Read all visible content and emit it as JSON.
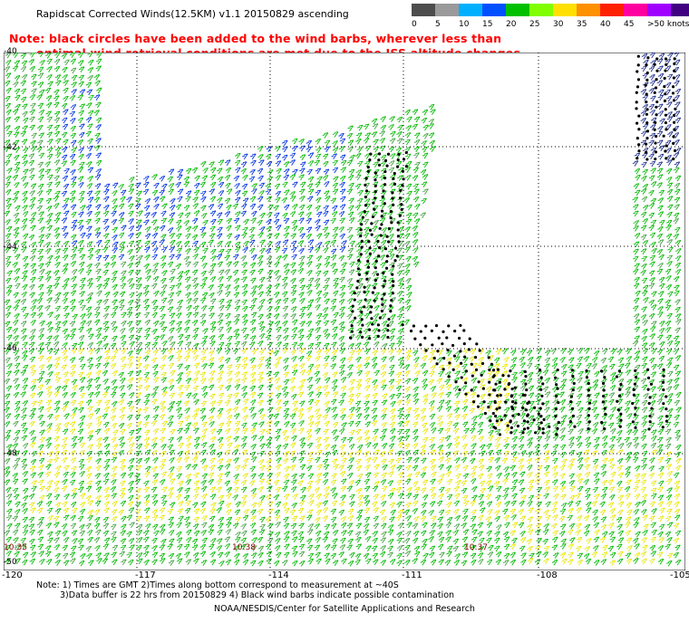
{
  "title": "Rapidscat Corrected Winds(12.5KM) v1.1 20150829 ascending",
  "note_line1": "Note: black circles have been added to the wind barbs, wherever less than",
  "note_line2": "optimal wind retrieval conditions are met due to the ISS altitude changes.",
  "legend": {
    "labels": [
      "0",
      "5",
      "10",
      "15",
      "20",
      "25",
      "30",
      "35",
      "40",
      "45",
      ">50 knots"
    ],
    "colors": [
      "#4d4d4d",
      "#9a9a9a",
      "#00b0ff",
      "#0050ff",
      "#00c000",
      "#80ff00",
      "#ffe000",
      "#ff9000",
      "#ff2000",
      "#ff00a0",
      "#a000ff",
      "#400080"
    ]
  },
  "axis": {
    "x_ticks": [
      "-120",
      "-117",
      "-114",
      "-111",
      "-108",
      "-105"
    ],
    "y_ticks": [
      "-40",
      "-42",
      "-44",
      "-46",
      "-48",
      "-50"
    ]
  },
  "time_labels": [
    "10:35",
    "10:38",
    "10:37"
  ],
  "footnote_line1": "Note: 1) Times are GMT 2)Times along bottom correspond to measurement at ~40S",
  "footnote_line2": "3)Data buffer is 22 hrs from 20150829 4) Black wind barbs indicate possible contamination",
  "credit": "NOAA/NESDIS/Center for Satellite Applications and Research"
}
